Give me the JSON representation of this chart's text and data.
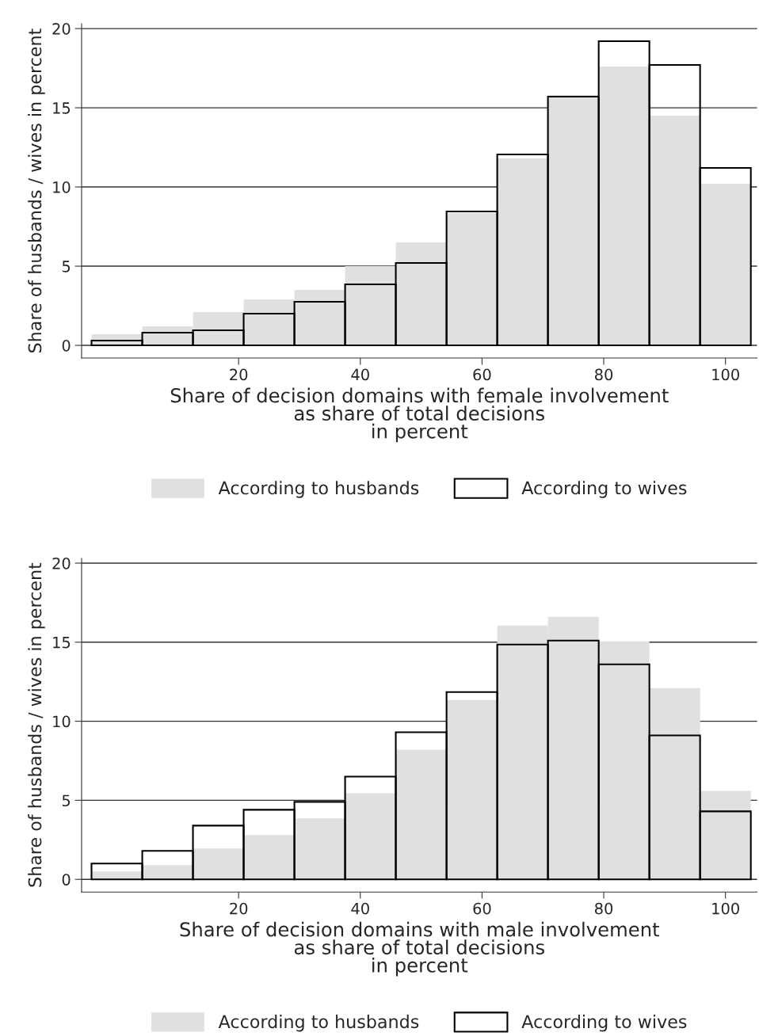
{
  "chart_data": [
    {
      "type": "histogram",
      "xlabel": "Share of decision domains with female involvement\nas share of total decisions\nin percent",
      "ylabel": "Share of husbands / wives in percent",
      "bins": [
        -4.17,
        4.17,
        12.5,
        20.83,
        29.17,
        37.5,
        45.83,
        54.17,
        62.5,
        70.83,
        79.17,
        87.5,
        95.83,
        104.17
      ],
      "series": [
        {
          "name": "According to husbands",
          "color": "#e0e0e0",
          "values": [
            0.7,
            1.2,
            2.1,
            2.9,
            3.5,
            5.0,
            6.5,
            8.35,
            11.8,
            15.8,
            17.6,
            14.5,
            10.2
          ]
        },
        {
          "name": "According to wives",
          "color": "#000000",
          "values": [
            0.3,
            0.8,
            0.95,
            2.0,
            2.75,
            3.85,
            5.2,
            8.45,
            12.05,
            15.7,
            19.2,
            17.7,
            11.2
          ]
        }
      ],
      "xlim": [
        -5.8,
        105.2
      ],
      "ylim": [
        -0.8,
        20.3
      ],
      "xticks": [
        20,
        40,
        60,
        80,
        100
      ],
      "yticks": [
        0,
        5,
        10,
        15,
        20
      ],
      "grid": "y",
      "legend": "bottom"
    },
    {
      "type": "histogram",
      "xlabel": "Share of decision domains with male involvement\nas share of total decisions\nin percent",
      "ylabel": "Share of husbands / wives in percent",
      "bins": [
        -4.17,
        4.17,
        12.5,
        20.83,
        29.17,
        37.5,
        45.83,
        54.17,
        62.5,
        70.83,
        79.17,
        87.5,
        95.83,
        104.17
      ],
      "series": [
        {
          "name": "According to husbands",
          "color": "#e0e0e0",
          "values": [
            0.5,
            0.9,
            1.95,
            2.8,
            3.85,
            5.45,
            8.2,
            11.35,
            16.05,
            16.6,
            15.05,
            12.1,
            5.6
          ]
        },
        {
          "name": "According to wives",
          "color": "#000000",
          "values": [
            1.0,
            1.8,
            3.4,
            4.4,
            4.9,
            6.5,
            9.3,
            11.85,
            14.85,
            15.1,
            13.6,
            9.1,
            4.3
          ]
        }
      ],
      "xlim": [
        -5.8,
        105.2
      ],
      "ylim": [
        -0.8,
        20.3
      ],
      "xticks": [
        20,
        40,
        60,
        80,
        100
      ],
      "yticks": [
        0,
        5,
        10,
        15,
        20
      ],
      "grid": "y",
      "legend": "bottom"
    }
  ]
}
